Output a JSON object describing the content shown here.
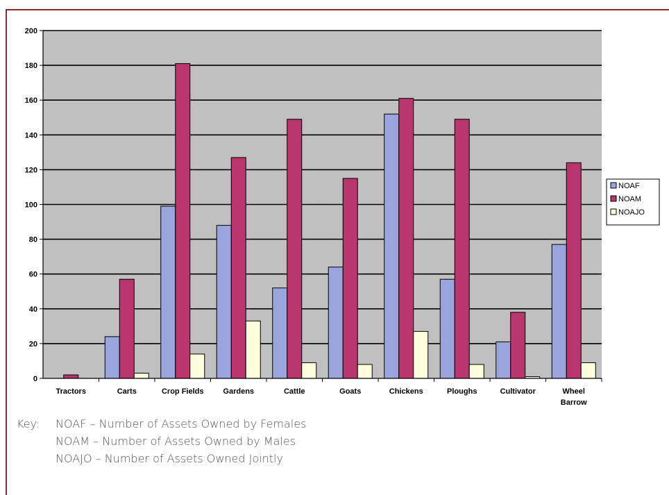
{
  "colors": {
    "plot_bg": "#c0c0c0",
    "frame": "#8b2a2a"
  },
  "chart_data": {
    "type": "bar",
    "categories": [
      "Tractors",
      "Carts",
      "Crop Fields",
      "Gardens",
      "Cattle",
      "Goats",
      "Chickens",
      "Ploughs",
      "Cultivator",
      "Wheel Barrow"
    ],
    "series": [
      {
        "name": "NOAF",
        "color": "#9aa5dd",
        "values": [
          0,
          24,
          99,
          88,
          52,
          64,
          152,
          57,
          21,
          77
        ]
      },
      {
        "name": "NOAM",
        "color": "#b8356d",
        "values": [
          2,
          57,
          181,
          127,
          149,
          115,
          161,
          149,
          38,
          124
        ]
      },
      {
        "name": "NOAJO",
        "color": "#ffffdd",
        "values": [
          0,
          3,
          14,
          33,
          9,
          8,
          27,
          8,
          1,
          9
        ]
      }
    ],
    "ylim": [
      0,
      200
    ],
    "yticks": [
      0,
      20,
      40,
      60,
      80,
      100,
      120,
      140,
      160,
      180,
      200
    ],
    "grid": true,
    "legend": "right",
    "title": "",
    "xlabel": "",
    "ylabel": ""
  },
  "key": {
    "prefix": "Key:",
    "entries": [
      "NOAF – Number of Assets Owned by Females",
      "NOAM – Number of Assets Owned by Males",
      "NOAJO – Number of Assets Owned Jointly"
    ]
  }
}
